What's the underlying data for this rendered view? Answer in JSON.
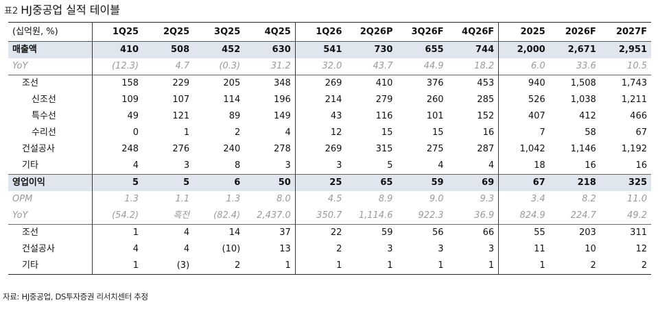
{
  "title": {
    "prefix": "표2",
    "text": "HJ중공업 실적 테이블"
  },
  "header": [
    "(십억원, %)",
    "1Q25",
    "2Q25",
    "3Q25",
    "4Q25",
    "1Q26",
    "2Q26P",
    "3Q26F",
    "4Q26F",
    "2025",
    "2026F",
    "2027F"
  ],
  "rows": [
    {
      "label": "매출액",
      "values": [
        "410",
        "508",
        "452",
        "630",
        "541",
        "730",
        "655",
        "744",
        "2,000",
        "2,671",
        "2,951"
      ]
    },
    {
      "label": "YoY",
      "values": [
        "(12.3)",
        "4.7",
        "(0.3)",
        "31.2",
        "32.0",
        "43.7",
        "44.9",
        "18.2",
        "6.0",
        "33.6",
        "10.5"
      ]
    },
    {
      "label": "조선",
      "values": [
        "158",
        "229",
        "205",
        "348",
        "269",
        "410",
        "376",
        "453",
        "940",
        "1,508",
        "1,743"
      ]
    },
    {
      "label": "신조선",
      "values": [
        "109",
        "107",
        "114",
        "196",
        "214",
        "279",
        "260",
        "285",
        "526",
        "1,038",
        "1,211"
      ]
    },
    {
      "label": "특수선",
      "values": [
        "49",
        "121",
        "89",
        "149",
        "43",
        "116",
        "101",
        "152",
        "407",
        "412",
        "466"
      ]
    },
    {
      "label": "수리선",
      "values": [
        "0",
        "1",
        "2",
        "4",
        "12",
        "15",
        "15",
        "16",
        "7",
        "58",
        "67"
      ]
    },
    {
      "label": "건설공사",
      "values": [
        "248",
        "276",
        "240",
        "278",
        "269",
        "315",
        "275",
        "287",
        "1,042",
        "1,146",
        "1,192"
      ]
    },
    {
      "label": "기타",
      "values": [
        "4",
        "3",
        "8",
        "3",
        "3",
        "5",
        "4",
        "4",
        "18",
        "16",
        "16"
      ]
    },
    {
      "label": "영업이익",
      "values": [
        "5",
        "5",
        "6",
        "50",
        "25",
        "65",
        "59",
        "69",
        "67",
        "218",
        "325"
      ]
    },
    {
      "label": "OPM",
      "values": [
        "1.3",
        "1.1",
        "1.3",
        "8.0",
        "4.5",
        "8.9",
        "9.0",
        "9.3",
        "3.4",
        "8.2",
        "11.0"
      ]
    },
    {
      "label": "YoY",
      "values": [
        "(54.2)",
        "흑전",
        "(82.4)",
        "2,437.0",
        "350.7",
        "1,114.6",
        "922.3",
        "36.9",
        "824.9",
        "224.7",
        "49.2"
      ]
    },
    {
      "label": "조선",
      "values": [
        "1",
        "4",
        "14",
        "37",
        "22",
        "59",
        "56",
        "66",
        "55",
        "203",
        "311"
      ]
    },
    {
      "label": "건설공사",
      "values": [
        "4",
        "4",
        "(10)",
        "13",
        "2",
        "3",
        "3",
        "3",
        "11",
        "10",
        "12"
      ]
    },
    {
      "label": "기타",
      "values": [
        "1",
        "(3)",
        "2",
        "1",
        "1",
        "1",
        "1",
        "1",
        "1",
        "2",
        "2"
      ]
    }
  ],
  "source": "자료: HJ중공업, DS투자증권 리서치센터 추정",
  "colors": {
    "highlight_row": "#dfe6ee",
    "muted_text": "#9a9a9a"
  }
}
